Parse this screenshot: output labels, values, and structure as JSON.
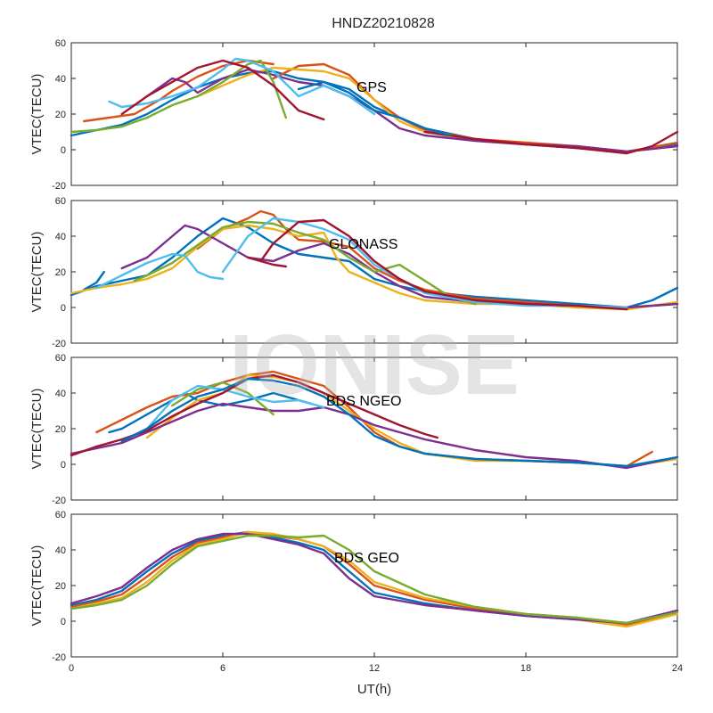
{
  "figure": {
    "title": "HNDZ20210828",
    "xlabel": "UT(h)",
    "watermark": "IONISE"
  },
  "colors": [
    "#0072bd",
    "#d95319",
    "#edb120",
    "#7e2f8e",
    "#77ac30",
    "#4dbeee",
    "#a2142f"
  ],
  "chart_data": [
    {
      "type": "line",
      "label": "GPS",
      "ylabel": "VTEC(TECU)",
      "xlim": [
        0,
        24
      ],
      "ylim": [
        -20,
        60
      ],
      "xticks": [
        0,
        6,
        12,
        18,
        24
      ],
      "yticks": [
        -20,
        0,
        20,
        40,
        60
      ],
      "grid": false,
      "series": [
        {
          "color": "#0072bd",
          "x": [
            0,
            1,
            2,
            3,
            4,
            5,
            6,
            7,
            8,
            9,
            10,
            11,
            12,
            13,
            14,
            16,
            18,
            20,
            22,
            24
          ],
          "y": [
            8,
            11,
            14,
            20,
            28,
            35,
            40,
            43,
            44,
            40,
            38,
            34,
            24,
            18,
            12,
            6,
            3,
            1,
            -1,
            3
          ]
        },
        {
          "color": "#d95319",
          "x": [
            8,
            9,
            10,
            11,
            12,
            13,
            14,
            16,
            18,
            20,
            22,
            24
          ],
          "y": [
            40,
            47,
            48,
            42,
            28,
            18,
            11,
            6,
            4,
            2,
            -1,
            4
          ]
        },
        {
          "color": "#d95319",
          "x": [
            0.5,
            1.5,
            2.5,
            3.5,
            4,
            5,
            6,
            7,
            8
          ],
          "y": [
            16,
            18,
            20,
            28,
            33,
            41,
            47,
            50,
            48
          ]
        },
        {
          "color": "#edb120",
          "x": [
            5,
            6,
            7,
            8,
            9,
            10,
            11,
            12,
            13,
            14,
            16,
            18,
            20,
            22,
            24
          ],
          "y": [
            30,
            36,
            42,
            46,
            45,
            44,
            40,
            28,
            16,
            10,
            5,
            3,
            1,
            -1,
            2
          ]
        },
        {
          "color": "#7e2f8e",
          "x": [
            3,
            4,
            4.5,
            5,
            6,
            7,
            8,
            9,
            10,
            11,
            12,
            13,
            14,
            16,
            18,
            20,
            22,
            24
          ],
          "y": [
            30,
            40,
            38,
            32,
            40,
            45,
            42,
            38,
            36,
            30,
            22,
            12,
            8,
            5,
            3,
            2,
            -1,
            2
          ]
        },
        {
          "color": "#77ac30",
          "x": [
            0,
            1,
            2,
            3,
            4,
            5,
            6,
            7,
            7.5,
            8,
            8.5
          ],
          "y": [
            10,
            11,
            13,
            18,
            25,
            30,
            38,
            48,
            50,
            38,
            18
          ]
        },
        {
          "color": "#4dbeee",
          "x": [
            1.5,
            2,
            3,
            4,
            5,
            6,
            6.5,
            7,
            8,
            9,
            10,
            11,
            12
          ],
          "y": [
            27,
            24,
            26,
            30,
            35,
            45,
            51,
            50,
            44,
            30,
            36,
            30,
            20
          ]
        },
        {
          "color": "#a2142f",
          "x": [
            2,
            3,
            4,
            5,
            6,
            7,
            8,
            9,
            10
          ],
          "y": [
            20,
            30,
            38,
            46,
            50,
            46,
            36,
            22,
            17
          ]
        },
        {
          "color": "#a2142f",
          "x": [
            14,
            16,
            18,
            20,
            22,
            23,
            24
          ],
          "y": [
            10,
            6,
            3,
            1,
            -2,
            2,
            10
          ]
        },
        {
          "color": "#0072bd",
          "x": [
            9,
            10,
            11,
            12,
            13,
            14,
            15
          ],
          "y": [
            34,
            38,
            32,
            22,
            18,
            12,
            8
          ]
        }
      ]
    },
    {
      "type": "line",
      "label": "GLONASS",
      "ylabel": "VTEC(TECU)",
      "xlim": [
        0,
        24
      ],
      "ylim": [
        -20,
        60
      ],
      "xticks": [
        0,
        6,
        12,
        18,
        24
      ],
      "yticks": [
        -20,
        0,
        20,
        40,
        60
      ],
      "grid": false,
      "series": [
        {
          "color": "#0072bd",
          "x": [
            0,
            1,
            2,
            3,
            4,
            5,
            6,
            7,
            8,
            9,
            10,
            11,
            12,
            13,
            14,
            16,
            18,
            20,
            22,
            23,
            24
          ],
          "y": [
            7,
            12,
            15,
            18,
            28,
            40,
            50,
            45,
            36,
            30,
            28,
            26,
            16,
            12,
            9,
            6,
            4,
            2,
            0,
            4,
            11
          ]
        },
        {
          "color": "#0072bd",
          "x": [
            0.5,
            1,
            1.3
          ],
          "y": [
            10,
            14,
            20
          ]
        },
        {
          "color": "#d95319",
          "x": [
            5,
            6,
            7,
            7.5,
            8,
            8.5,
            9,
            10,
            11,
            12,
            13,
            14,
            16,
            18,
            20,
            22,
            24
          ],
          "y": [
            33,
            44,
            50,
            54,
            52,
            44,
            38,
            37,
            34,
            22,
            15,
            10,
            5,
            3,
            1,
            0,
            2
          ]
        },
        {
          "color": "#edb120",
          "x": [
            0,
            1,
            2,
            3,
            4,
            5,
            6,
            7,
            8,
            9,
            10,
            10.5,
            11,
            12,
            13,
            14,
            16,
            18,
            20,
            22,
            24
          ],
          "y": [
            8,
            11,
            13,
            16,
            22,
            34,
            44,
            46,
            44,
            40,
            42,
            28,
            20,
            14,
            8,
            4,
            2,
            2,
            0,
            -1,
            3
          ]
        },
        {
          "color": "#7e2f8e",
          "x": [
            2,
            3,
            4,
            4.5,
            5,
            6,
            7,
            8,
            9,
            10,
            11,
            12,
            13,
            14,
            16,
            18,
            20,
            22,
            24
          ],
          "y": [
            22,
            28,
            40,
            46,
            44,
            36,
            28,
            26,
            32,
            36,
            30,
            20,
            12,
            6,
            3,
            2,
            1,
            0,
            2
          ]
        },
        {
          "color": "#77ac30",
          "x": [
            2.5,
            3,
            4,
            5,
            6,
            7,
            8,
            9,
            10,
            11,
            12,
            13,
            14,
            15,
            16
          ],
          "y": [
            15,
            18,
            25,
            35,
            45,
            48,
            47,
            42,
            38,
            28,
            20,
            24,
            15,
            6,
            2
          ]
        },
        {
          "color": "#4dbeee",
          "x": [
            1,
            2,
            3,
            4,
            4.5,
            5,
            5.5,
            6
          ],
          "y": [
            11,
            18,
            25,
            30,
            29,
            20,
            17,
            16
          ]
        },
        {
          "color": "#4dbeee",
          "x": [
            6,
            7,
            8,
            9,
            10,
            11,
            12,
            13,
            14,
            16,
            18,
            20,
            22
          ],
          "y": [
            20,
            40,
            50,
            48,
            44,
            38,
            24,
            16,
            8,
            3,
            1,
            1,
            0
          ]
        },
        {
          "color": "#a2142f",
          "x": [
            7.5,
            8,
            9,
            10,
            11,
            12,
            13,
            14,
            16,
            18,
            20,
            22
          ],
          "y": [
            26,
            36,
            48,
            49,
            40,
            26,
            16,
            9,
            4,
            2,
            1,
            -1
          ]
        },
        {
          "color": "#a2142f",
          "x": [
            7,
            8,
            8.5
          ],
          "y": [
            28,
            24,
            23
          ]
        }
      ]
    },
    {
      "type": "line",
      "label": "BDS NGEO",
      "ylabel": "VTEC(TECU)",
      "xlim": [
        0,
        24
      ],
      "ylim": [
        -20,
        60
      ],
      "xticks": [
        0,
        6,
        12,
        18,
        24
      ],
      "yticks": [
        -20,
        0,
        20,
        40,
        60
      ],
      "grid": false,
      "series": [
        {
          "color": "#0072bd",
          "x": [
            1.5,
            2,
            3,
            4,
            4.5,
            5,
            6,
            7,
            8,
            9,
            9.5
          ],
          "y": [
            18,
            20,
            28,
            36,
            40,
            36,
            33,
            36,
            40,
            36,
            34
          ]
        },
        {
          "color": "#d95319",
          "x": [
            1,
            2,
            3,
            4,
            5,
            6,
            7,
            8,
            9,
            10,
            11,
            12,
            13,
            14,
            16,
            18,
            20,
            22,
            23
          ],
          "y": [
            18,
            25,
            32,
            38,
            40,
            46,
            50,
            52,
            48,
            44,
            32,
            18,
            10,
            6,
            3,
            2,
            1,
            -1,
            7
          ]
        },
        {
          "color": "#edb120",
          "x": [
            3,
            4,
            5,
            6,
            7,
            8,
            9,
            10,
            11,
            12,
            13,
            14,
            16,
            18,
            20,
            22,
            24
          ],
          "y": [
            15,
            26,
            36,
            40,
            50,
            49,
            46,
            40,
            30,
            20,
            12,
            6,
            2,
            2,
            1,
            -1,
            3
          ]
        },
        {
          "color": "#7e2f8e",
          "x": [
            0,
            1,
            2,
            3,
            4,
            5,
            6,
            7,
            8,
            9,
            10,
            11,
            12,
            13,
            14,
            16,
            18,
            20,
            22,
            24
          ],
          "y": [
            6,
            9,
            12,
            18,
            24,
            30,
            34,
            32,
            30,
            30,
            32,
            28,
            22,
            18,
            14,
            8,
            4,
            2,
            -2,
            4
          ]
        },
        {
          "color": "#77ac30",
          "x": [
            4,
            5,
            6,
            7,
            7.5,
            8
          ],
          "y": [
            33,
            42,
            46,
            40,
            34,
            28
          ]
        },
        {
          "color": "#4dbeee",
          "x": [
            3,
            4,
            5,
            6,
            7,
            8,
            9,
            10
          ],
          "y": [
            20,
            36,
            44,
            42,
            38,
            35,
            36,
            32
          ]
        },
        {
          "color": "#a2142f",
          "x": [
            0,
            1,
            2,
            3,
            4,
            5,
            6,
            7,
            8,
            9,
            10,
            11,
            12,
            13,
            14,
            14.5
          ],
          "y": [
            5,
            10,
            14,
            19,
            27,
            34,
            40,
            48,
            50,
            46,
            40,
            34,
            28,
            22,
            17,
            15
          ]
        },
        {
          "color": "#0072bd",
          "x": [
            2,
            3,
            4,
            5,
            6,
            7,
            8,
            9,
            10,
            11,
            12,
            13,
            14,
            16,
            18,
            20,
            22,
            24
          ],
          "y": [
            13,
            20,
            30,
            38,
            42,
            48,
            47,
            44,
            38,
            28,
            16,
            10,
            6,
            3,
            2,
            1,
            -1,
            4
          ]
        }
      ]
    },
    {
      "type": "line",
      "label": "BDS GEO",
      "ylabel": "VTEC(TECU)",
      "xlim": [
        0,
        24
      ],
      "ylim": [
        -20,
        60
      ],
      "xticks": [
        0,
        6,
        12,
        18,
        24
      ],
      "yticks": [
        -20,
        0,
        20,
        40,
        60
      ],
      "grid": false,
      "series": [
        {
          "color": "#0072bd",
          "x": [
            0,
            1,
            2,
            3,
            4,
            5,
            6,
            7,
            8,
            9,
            10,
            11,
            12,
            14,
            16,
            18,
            20,
            22,
            24
          ],
          "y": [
            9,
            12,
            17,
            28,
            38,
            45,
            48,
            50,
            47,
            44,
            40,
            28,
            16,
            10,
            6,
            3,
            1,
            -1,
            6
          ]
        },
        {
          "color": "#d95319",
          "x": [
            0,
            1,
            2,
            3,
            4,
            5,
            6,
            7,
            8,
            9,
            10,
            11,
            12,
            14,
            16,
            18,
            20,
            22,
            24
          ],
          "y": [
            8,
            11,
            15,
            25,
            36,
            44,
            47,
            50,
            48,
            46,
            42,
            32,
            20,
            12,
            7,
            4,
            2,
            -2,
            5
          ]
        },
        {
          "color": "#edb120",
          "x": [
            0,
            1,
            2,
            3,
            4,
            5,
            6,
            7,
            8,
            9,
            10,
            11,
            12,
            14,
            16,
            18,
            20,
            22,
            24
          ],
          "y": [
            7,
            10,
            13,
            22,
            34,
            43,
            46,
            50,
            49,
            46,
            42,
            34,
            22,
            13,
            8,
            4,
            1,
            -3,
            4
          ]
        },
        {
          "color": "#7e2f8e",
          "x": [
            0,
            1,
            2,
            3,
            4,
            5,
            6,
            7,
            8,
            9,
            10,
            11,
            12,
            14,
            16,
            18,
            20,
            22,
            24
          ],
          "y": [
            10,
            14,
            19,
            30,
            40,
            46,
            49,
            49,
            46,
            43,
            38,
            24,
            14,
            9,
            6,
            3,
            1,
            -1,
            6
          ]
        },
        {
          "color": "#77ac30",
          "x": [
            0,
            1,
            2,
            3,
            4,
            5,
            6,
            7,
            8,
            9,
            10,
            11,
            12,
            14,
            16,
            18,
            20,
            22,
            24
          ],
          "y": [
            7,
            9,
            12,
            20,
            32,
            42,
            45,
            48,
            48,
            47,
            48,
            40,
            28,
            15,
            8,
            4,
            2,
            -1,
            5
          ]
        }
      ]
    }
  ]
}
